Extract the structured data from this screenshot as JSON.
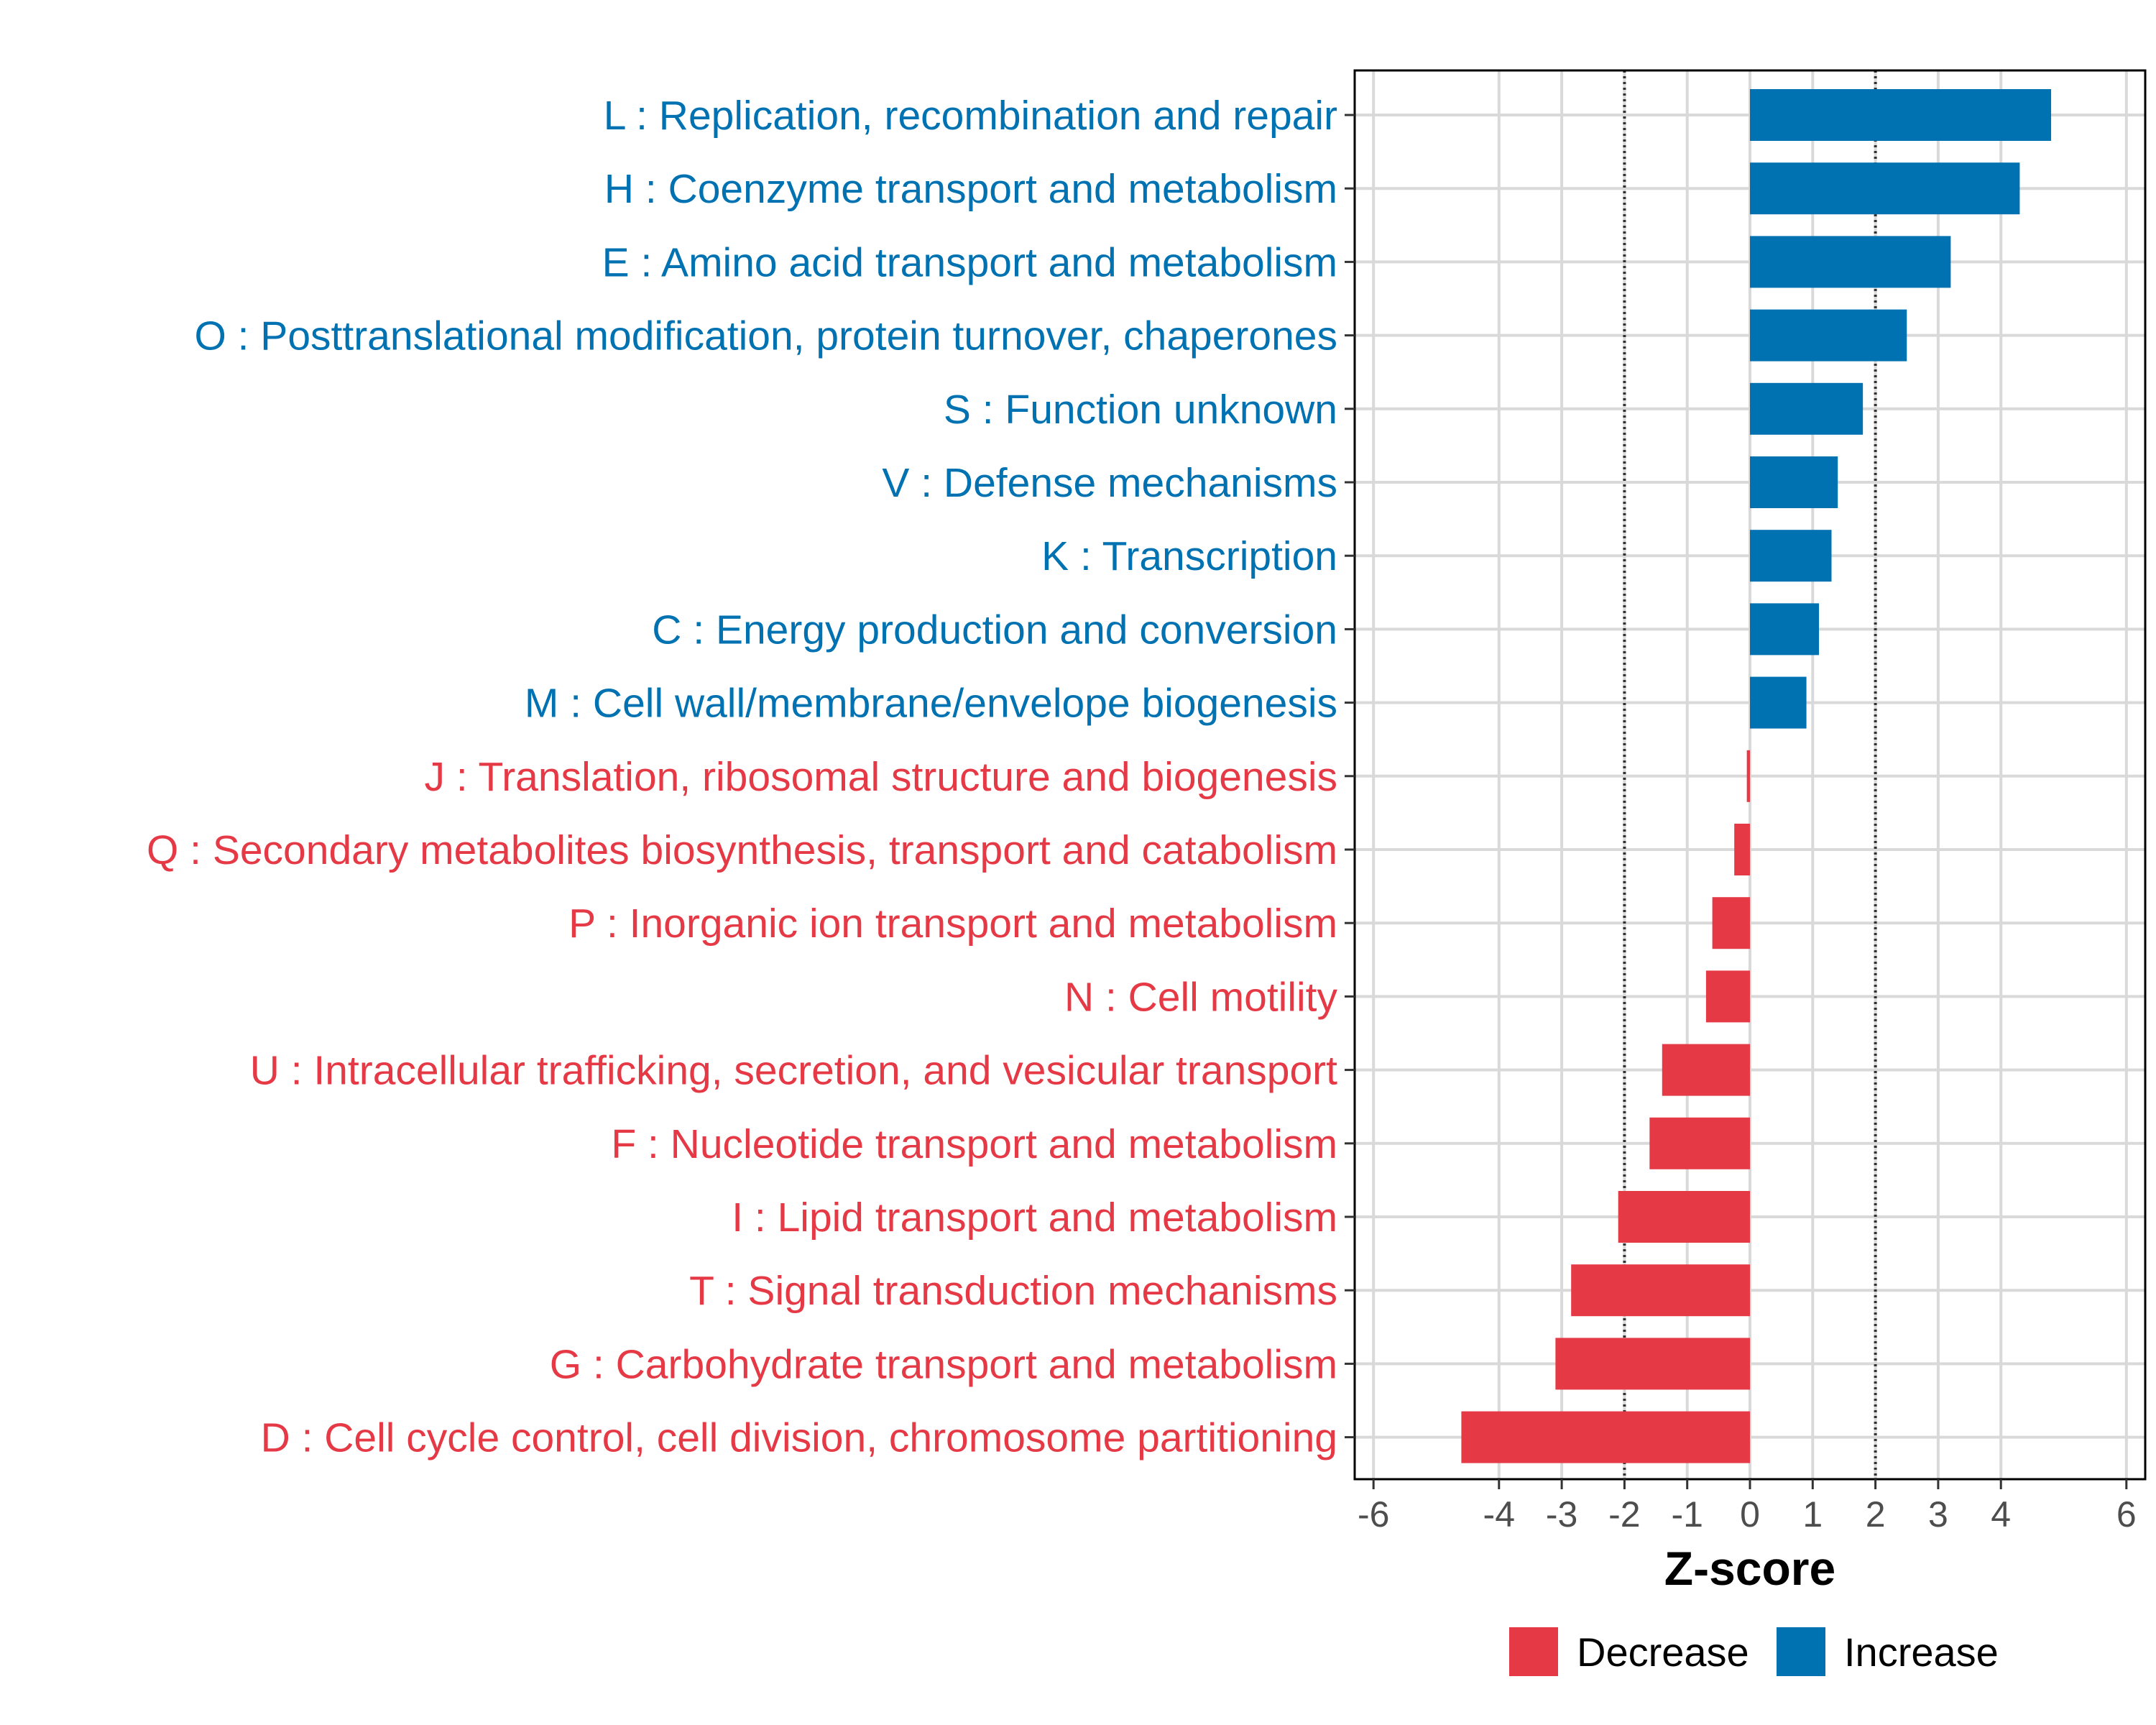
{
  "chart_data": {
    "type": "bar",
    "orientation": "horizontal",
    "title": "",
    "xlabel": "Z-score",
    "ylabel": "",
    "xlim": [
      -6.3,
      6.3
    ],
    "xticks": [
      -6,
      -4,
      -3,
      -2,
      -1,
      0,
      1,
      2,
      3,
      4,
      6
    ],
    "threshold_lines": [
      -2,
      2
    ],
    "grid": true,
    "colors": {
      "Decrease": "#e63946",
      "Increase": "#0072b2"
    },
    "categories": [
      "L : Replication, recombination and repair",
      "H : Coenzyme transport and metabolism",
      "E : Amino acid transport and metabolism",
      "O : Posttranslational modification, protein turnover, chaperones",
      "S : Function unknown",
      "V : Defense mechanisms",
      "K : Transcription",
      "C : Energy production and conversion",
      "M : Cell wall/membrane/envelope biogenesis",
      "J : Translation, ribosomal structure and biogenesis",
      "Q : Secondary metabolites biosynthesis, transport and catabolism",
      "P : Inorganic ion transport and metabolism",
      "N : Cell motility",
      "U : Intracellular trafficking, secretion, and vesicular transport",
      "F : Nucleotide transport and metabolism",
      "I : Lipid transport and metabolism",
      "T : Signal transduction mechanisms",
      "G : Carbohydrate transport and metabolism",
      "D : Cell cycle control, cell division, chromosome partitioning"
    ],
    "values": [
      4.8,
      4.3,
      3.2,
      2.5,
      1.8,
      1.4,
      1.3,
      1.1,
      0.9,
      -0.05,
      -0.25,
      -0.6,
      -0.7,
      -1.4,
      -1.6,
      -2.1,
      -2.85,
      -3.1,
      -4.6
    ],
    "direction": [
      "Increase",
      "Increase",
      "Increase",
      "Increase",
      "Increase",
      "Increase",
      "Increase",
      "Increase",
      "Increase",
      "Decrease",
      "Decrease",
      "Decrease",
      "Decrease",
      "Decrease",
      "Decrease",
      "Decrease",
      "Decrease",
      "Decrease",
      "Decrease"
    ],
    "legend": {
      "position": "bottom",
      "entries": [
        "Decrease",
        "Increase"
      ]
    }
  }
}
